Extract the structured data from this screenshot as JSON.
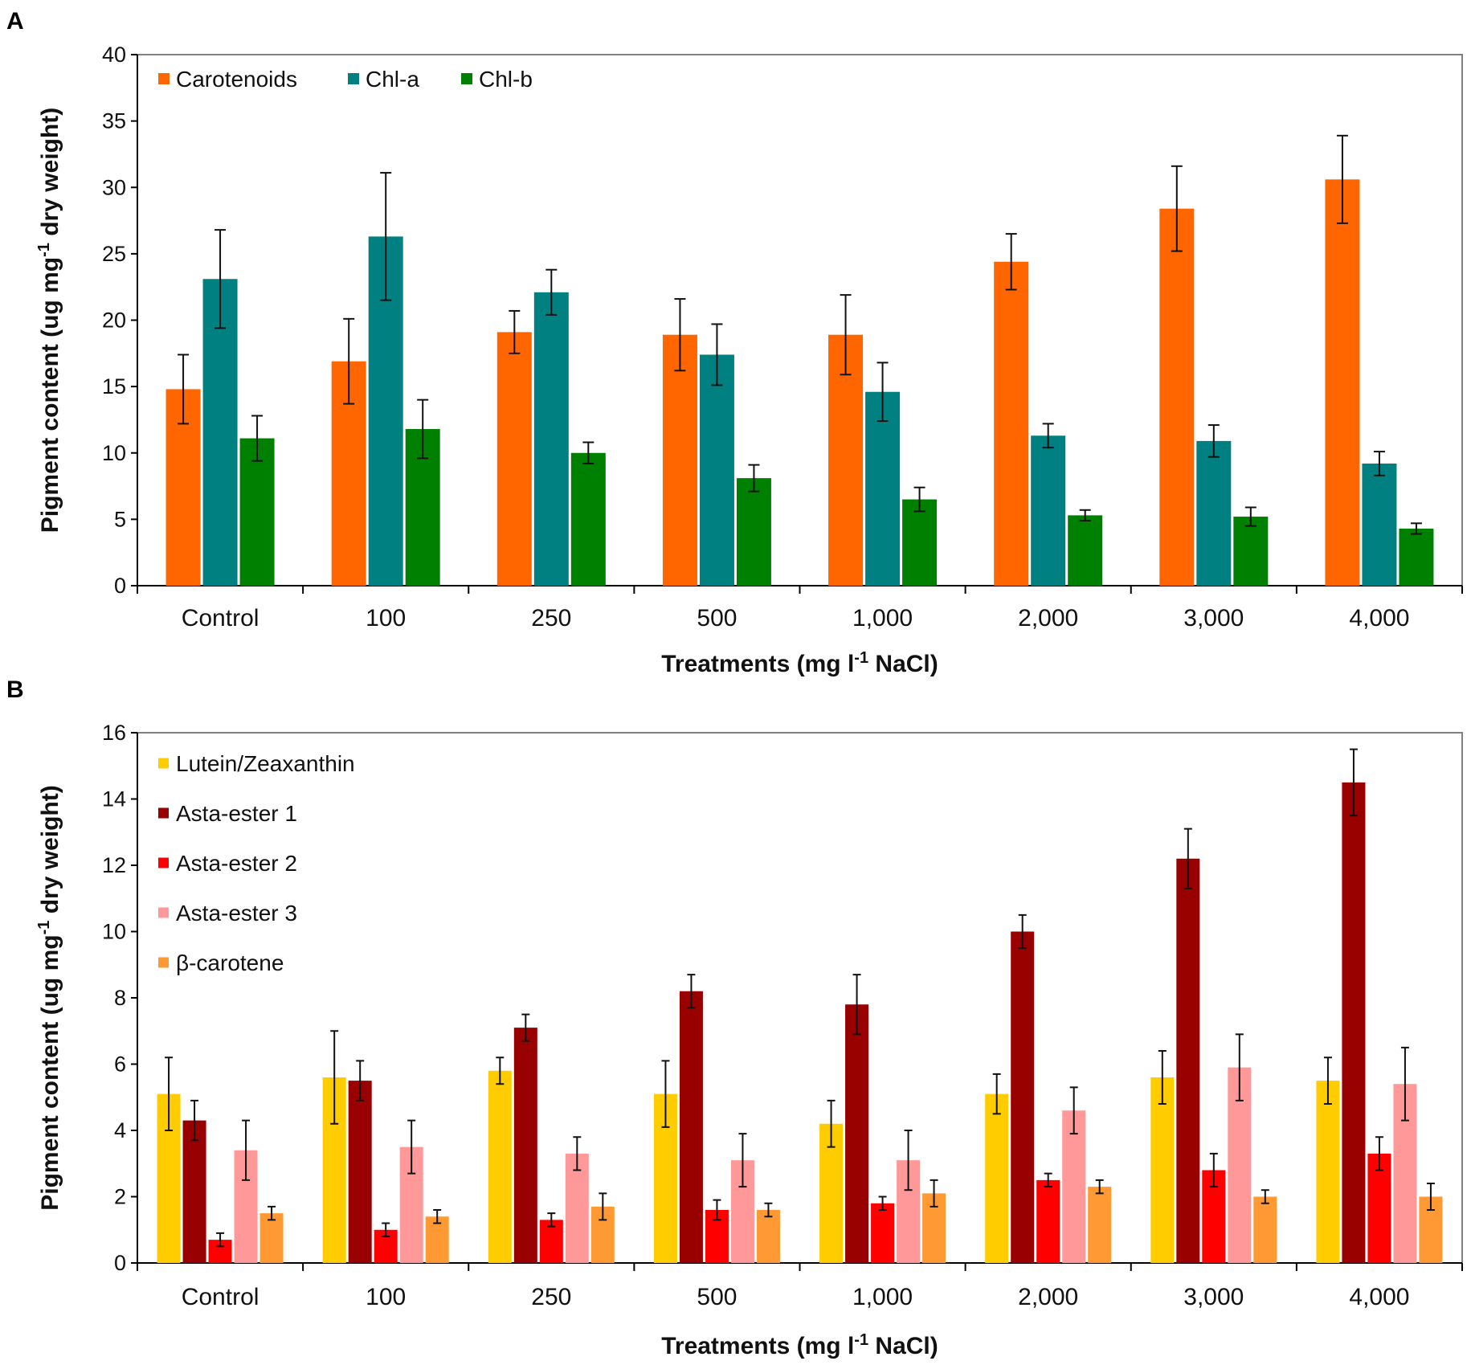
{
  "chart_data": [
    {
      "type": "bar",
      "panel_label": "A",
      "categories": [
        "Control",
        "100",
        "250",
        "500",
        "1,000",
        "2,000",
        "3,000",
        "4,000"
      ],
      "series": [
        {
          "name": "Carotenoids",
          "color": "#ff6600",
          "values": [
            14.8,
            16.9,
            19.1,
            18.9,
            18.9,
            24.4,
            28.4,
            30.6
          ],
          "errors": [
            2.6,
            3.2,
            1.6,
            2.7,
            3.0,
            2.1,
            3.2,
            3.3
          ]
        },
        {
          "name": "Chl-a",
          "color": "#008080",
          "values": [
            23.1,
            26.3,
            22.1,
            17.4,
            14.6,
            11.3,
            10.9,
            9.2
          ],
          "errors": [
            3.7,
            4.8,
            1.7,
            2.3,
            2.2,
            0.9,
            1.2,
            0.9
          ]
        },
        {
          "name": "Chl-b",
          "color": "#008000",
          "values": [
            11.1,
            11.8,
            10.0,
            8.1,
            6.5,
            5.3,
            5.2,
            4.3
          ],
          "errors": [
            1.7,
            2.2,
            0.8,
            1.0,
            0.9,
            0.4,
            0.7,
            0.4
          ]
        }
      ],
      "xlabel": {
        "main": "Treatments (mg l",
        "sup": "-1",
        "rest": " NaCl)"
      },
      "ylabel": {
        "main": "Pigment content (ug mg",
        "sup": "-1",
        "rest": " dry weight)"
      },
      "ylim": [
        0,
        40
      ],
      "yticks": [
        "0",
        "5",
        "10",
        "15",
        "20",
        "25",
        "30",
        "35",
        "40"
      ],
      "legend_position": "top-left, horizontal",
      "grid": false
    },
    {
      "type": "bar",
      "panel_label": "B",
      "categories": [
        "Control",
        "100",
        "250",
        "500",
        "1,000",
        "2,000",
        "3,000",
        "4,000"
      ],
      "series": [
        {
          "name": "Lutein/Zeaxanthin",
          "color": "#ffcc00",
          "values": [
            5.1,
            5.6,
            5.8,
            5.1,
            4.2,
            5.1,
            5.6,
            5.5
          ],
          "errors": [
            1.1,
            1.4,
            0.4,
            1.0,
            0.7,
            0.6,
            0.8,
            0.7
          ]
        },
        {
          "name": "Asta-ester 1",
          "color": "#990000",
          "values": [
            4.3,
            5.5,
            7.1,
            8.2,
            7.8,
            10.0,
            12.2,
            14.5
          ],
          "errors": [
            0.6,
            0.6,
            0.4,
            0.5,
            0.9,
            0.5,
            0.9,
            1.0
          ]
        },
        {
          "name": "Asta-ester 2",
          "color": "#ff0000",
          "values": [
            0.7,
            1.0,
            1.3,
            1.6,
            1.8,
            2.5,
            2.8,
            3.3
          ],
          "errors": [
            0.2,
            0.2,
            0.2,
            0.3,
            0.2,
            0.2,
            0.5,
            0.5
          ]
        },
        {
          "name": "Asta-ester 3",
          "color": "#ff9999",
          "values": [
            3.4,
            3.5,
            3.3,
            3.1,
            3.1,
            4.6,
            5.9,
            5.4
          ],
          "errors": [
            0.9,
            0.8,
            0.5,
            0.8,
            0.9,
            0.7,
            1.0,
            1.1
          ]
        },
        {
          "name": "β-carotene",
          "color": "#ff9933",
          "values": [
            1.5,
            1.4,
            1.7,
            1.6,
            2.1,
            2.3,
            2.0,
            2.0
          ],
          "errors": [
            0.2,
            0.2,
            0.4,
            0.2,
            0.4,
            0.2,
            0.2,
            0.4
          ]
        }
      ],
      "xlabel": {
        "main": "Treatments (mg l",
        "sup": "-1",
        "rest": " NaCl)"
      },
      "ylabel": {
        "main": "Pigment content (ug mg",
        "sup": "-1",
        "rest": " dry weight)"
      },
      "ylim": [
        0,
        16
      ],
      "yticks": [
        "0",
        "2",
        "4",
        "6",
        "8",
        "10",
        "12",
        "14",
        "16"
      ],
      "legend_position": "top-left, vertical",
      "grid": false
    }
  ]
}
